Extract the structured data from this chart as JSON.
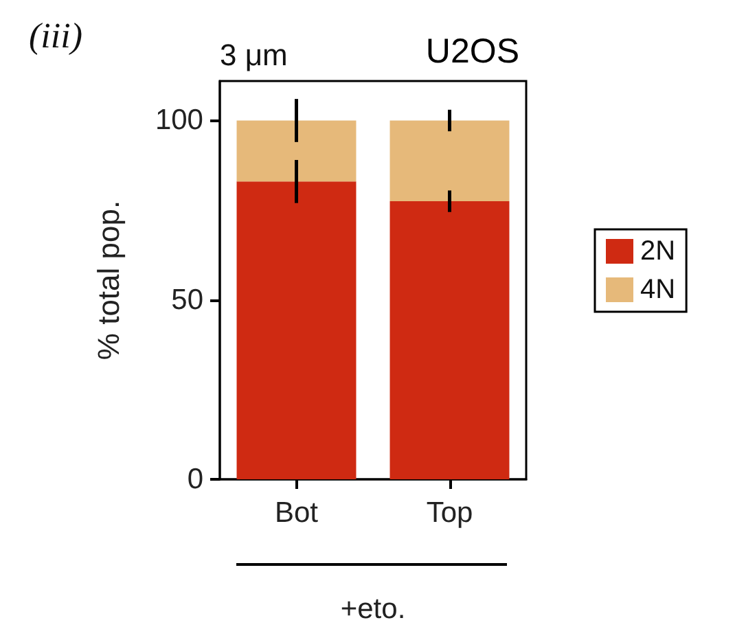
{
  "chart_data": {
    "type": "bar",
    "title": "U2OS",
    "subtitle": "3 μm",
    "annotations": [
      "(iii)"
    ],
    "xlabel": "+eto.",
    "ylabel": "% total pop.",
    "categories": [
      "Bot",
      "Top"
    ],
    "stacked": true,
    "series": [
      {
        "name": "2N",
        "color": "#cf2a12",
        "values": [
          83,
          77.5
        ],
        "errors": [
          6,
          3
        ]
      },
      {
        "name": "4N",
        "color": "#e6b97a",
        "values": [
          17,
          22.5
        ],
        "errors": [
          6,
          3
        ]
      }
    ],
    "ylim": [
      0,
      111
    ],
    "yticks": [
      0,
      50,
      100
    ],
    "grid": false,
    "legend": "right"
  }
}
